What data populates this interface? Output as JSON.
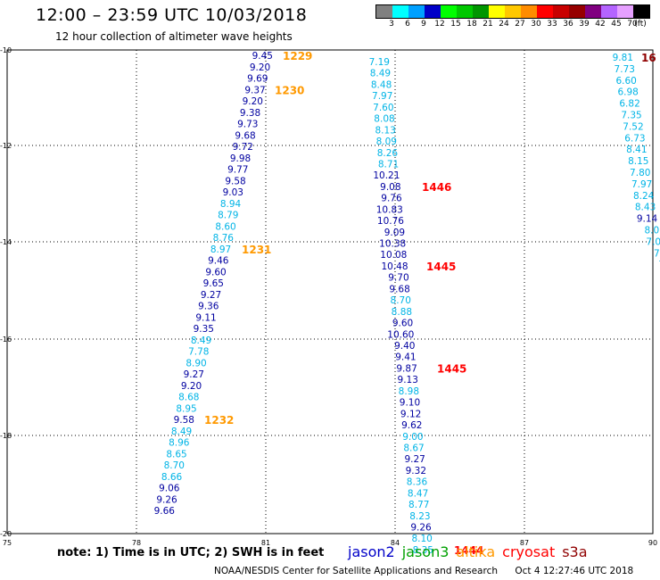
{
  "header": {
    "title": "12:00 – 23:59 UTC 10/03/2018",
    "subtitle": "12 hour collection of altimeter wave heights"
  },
  "colorbar": {
    "colors": [
      "#808080",
      "#00ffff",
      "#00a0ff",
      "#0000c8",
      "#00ff00",
      "#00c800",
      "#009600",
      "#ffff00",
      "#ffc800",
      "#ff8c00",
      "#ff0000",
      "#c80000",
      "#960000",
      "#800080",
      "#b464ff",
      "#e6a0ff",
      "#000000"
    ],
    "labels": [
      "3",
      "6",
      "9",
      "12",
      "15",
      "18",
      "21",
      "24",
      "27",
      "30",
      "33",
      "36",
      "39",
      "42",
      "45",
      "70",
      "(ft)"
    ]
  },
  "axes": {
    "x_ticks": [
      "75",
      "78",
      "81",
      "84",
      "87",
      "90"
    ],
    "y_ticks": [
      "-10",
      "-12",
      "-14",
      "-16",
      "-18",
      "-20"
    ]
  },
  "colors": {
    "jason2": "#0000a0",
    "jason3": "#00a000",
    "altika": "#ff9900",
    "cryosat": "#ff0000",
    "s3a": "#900000",
    "light": "#00b4e6"
  },
  "tracks": [
    {
      "name": "track-1",
      "values": [
        {
          "v": "9.45",
          "c": "d"
        },
        {
          "v": "9.20",
          "c": "d"
        },
        {
          "v": "9.69",
          "c": "d"
        },
        {
          "v": "9.37",
          "c": "d"
        },
        {
          "v": "9.20",
          "c": "d"
        },
        {
          "v": "9.38",
          "c": "d"
        },
        {
          "v": "9.73",
          "c": "d"
        },
        {
          "v": "9.68",
          "c": "d"
        },
        {
          "v": "9.72",
          "c": "d"
        },
        {
          "v": "9.98",
          "c": "d"
        },
        {
          "v": "9.77",
          "c": "d"
        },
        {
          "v": "9.58",
          "c": "d"
        },
        {
          "v": "9.03",
          "c": "d"
        },
        {
          "v": "8.94",
          "c": "l"
        },
        {
          "v": "8.79",
          "c": "l"
        },
        {
          "v": "8.60",
          "c": "l"
        },
        {
          "v": "8.76",
          "c": "l"
        },
        {
          "v": "8.97",
          "c": "l"
        },
        {
          "v": "9.46",
          "c": "d"
        },
        {
          "v": "9.60",
          "c": "d"
        },
        {
          "v": "9.65",
          "c": "d"
        },
        {
          "v": "9.27",
          "c": "d"
        },
        {
          "v": "9.36",
          "c": "d"
        },
        {
          "v": "9.11",
          "c": "d"
        },
        {
          "v": "9.35",
          "c": "d"
        },
        {
          "v": "8.49",
          "c": "l"
        },
        {
          "v": "7.78",
          "c": "l"
        },
        {
          "v": "8.90",
          "c": "l"
        },
        {
          "v": "9.27",
          "c": "d"
        },
        {
          "v": "9.20",
          "c": "d"
        },
        {
          "v": "8.68",
          "c": "l"
        },
        {
          "v": "8.95",
          "c": "l"
        },
        {
          "v": "9.58",
          "c": "d"
        },
        {
          "v": "8.49",
          "c": "l"
        },
        {
          "v": "8.96",
          "c": "l"
        },
        {
          "v": "8.65",
          "c": "l"
        },
        {
          "v": "8.70",
          "c": "l"
        },
        {
          "v": "8.66",
          "c": "l"
        },
        {
          "v": "9.06",
          "c": "d"
        },
        {
          "v": "9.26",
          "c": "d"
        },
        {
          "v": "9.66",
          "c": "d"
        }
      ],
      "times": [
        {
          "t": "1229",
          "idx": 0
        },
        {
          "t": "1230",
          "idx": 3
        },
        {
          "t": "1231",
          "idx": 17
        },
        {
          "t": "1232",
          "idx": 32
        }
      ],
      "time_color": "altika"
    },
    {
      "name": "track-2",
      "values": [
        {
          "v": "7.19",
          "c": "l"
        },
        {
          "v": "8.49",
          "c": "l"
        },
        {
          "v": "8.48",
          "c": "l"
        },
        {
          "v": "7.97",
          "c": "l"
        },
        {
          "v": "7.60",
          "c": "l"
        },
        {
          "v": "8.08",
          "c": "l"
        },
        {
          "v": "8.13",
          "c": "l"
        },
        {
          "v": "8.09",
          "c": "l"
        },
        {
          "v": "8.26",
          "c": "l"
        },
        {
          "v": "8.71",
          "c": "l"
        },
        {
          "v": "10.21",
          "c": "d"
        },
        {
          "v": "9.08",
          "c": "d"
        },
        {
          "v": "9.76",
          "c": "d"
        },
        {
          "v": "10.83",
          "c": "d"
        },
        {
          "v": "10.76",
          "c": "d"
        },
        {
          "v": "9.09",
          "c": "d"
        },
        {
          "v": "10.38",
          "c": "d"
        },
        {
          "v": "10.08",
          "c": "d"
        },
        {
          "v": "10.48",
          "c": "d"
        },
        {
          "v": "9.70",
          "c": "d"
        },
        {
          "v": "9.68",
          "c": "d"
        },
        {
          "v": "8.70",
          "c": "l"
        },
        {
          "v": "8.88",
          "c": "l"
        },
        {
          "v": "9.60",
          "c": "d"
        },
        {
          "v": "10.60",
          "c": "d"
        },
        {
          "v": "9.40",
          "c": "d"
        },
        {
          "v": "9.41",
          "c": "d"
        },
        {
          "v": "9.87",
          "c": "d"
        },
        {
          "v": "9.13",
          "c": "d"
        },
        {
          "v": "8.98",
          "c": "l"
        },
        {
          "v": "9.10",
          "c": "d"
        },
        {
          "v": "9.12",
          "c": "d"
        },
        {
          "v": "9.62",
          "c": "d"
        },
        {
          "v": "9.00",
          "c": "l"
        },
        {
          "v": "8.67",
          "c": "l"
        },
        {
          "v": "9.27",
          "c": "d"
        },
        {
          "v": "9.32",
          "c": "d"
        },
        {
          "v": "8.36",
          "c": "l"
        },
        {
          "v": "8.47",
          "c": "l"
        },
        {
          "v": "8.77",
          "c": "l"
        },
        {
          "v": "8.23",
          "c": "l"
        },
        {
          "v": "9.26",
          "c": "d"
        },
        {
          "v": "8.10",
          "c": "l"
        },
        {
          "v": "8.35",
          "c": "l"
        }
      ],
      "times": [
        {
          "t": "1446",
          "idx": 11
        },
        {
          "t": "1445",
          "idx": 18
        },
        {
          "t": "1445",
          "idx": 27
        },
        {
          "t": "1444",
          "idx": 43
        }
      ],
      "time_color": "cryosat"
    },
    {
      "name": "track-3",
      "values": [
        {
          "v": "9.81",
          "c": "l"
        },
        {
          "v": "7.73",
          "c": "l"
        },
        {
          "v": "6.60",
          "c": "l"
        },
        {
          "v": "6.98",
          "c": "l"
        },
        {
          "v": "6.82",
          "c": "l"
        },
        {
          "v": "7.35",
          "c": "l"
        },
        {
          "v": "7.52",
          "c": "l"
        },
        {
          "v": "6.73",
          "c": "l"
        },
        {
          "v": "8.41",
          "c": "l"
        },
        {
          "v": "8.15",
          "c": "l"
        },
        {
          "v": "7.80",
          "c": "l"
        },
        {
          "v": "7.97",
          "c": "l"
        },
        {
          "v": "8.24",
          "c": "l"
        },
        {
          "v": "8.43",
          "c": "l"
        },
        {
          "v": "9.14",
          "c": "d"
        },
        {
          "v": "8.0",
          "c": "l"
        },
        {
          "v": "7.0",
          "c": "l"
        },
        {
          "v": "7.",
          "c": "l"
        },
        {
          "v": "7",
          "c": "l"
        }
      ],
      "times": [
        {
          "t": "16",
          "idx": 0
        }
      ],
      "time_color": "s3a"
    }
  ],
  "note": "note:  1) Time is in UTC;  2) SWH is in feet",
  "legend": [
    {
      "label": "jason2",
      "color": "#0000c8"
    },
    {
      "label": "jason3",
      "color": "#00a000"
    },
    {
      "label": "altika",
      "color": "#ff9900"
    },
    {
      "label": "cryosat",
      "color": "#ff0000"
    },
    {
      "label": "s3a",
      "color": "#900000"
    }
  ],
  "footer": {
    "source": "NOAA/NESDIS Center for Satellite Applications and Research",
    "timestamp": "Oct  4 12:27:46 UTC 2018"
  }
}
